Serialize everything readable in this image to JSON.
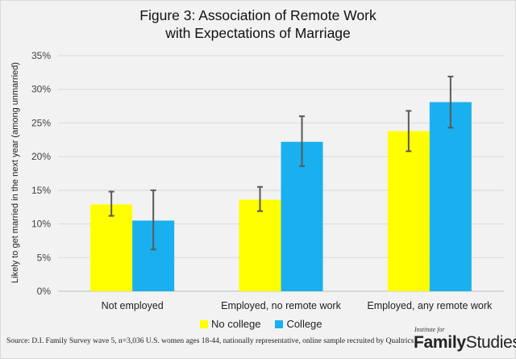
{
  "title_line1": "Figure 3: Association of Remote Work",
  "title_line2": "with Expectations of Marriage",
  "source": "Source: D.I. Family Survey wave 5, n=3,036 U.S. women ages 18-44, nationally representative, online sample recruited by Qualtrics",
  "logo": {
    "top_text": "Institute for",
    "name_bold": "Family",
    "name_rest": "Studies"
  },
  "colors": {
    "no_college": "#ffff00",
    "college": "#1ab0ef",
    "error_bar": "#595959",
    "grid": "#d9d9d9",
    "background": "#f2f2f2"
  },
  "chart_data": {
    "type": "bar",
    "title": "Figure 3: Association of Remote Work with Expectations of Marriage",
    "ylabel": "Likely to get married in the next year (among unmarried)",
    "xlabel": "",
    "ylim": [
      0,
      35
    ],
    "yticks": [
      0,
      5,
      10,
      15,
      20,
      25,
      30,
      35
    ],
    "ytick_labels": [
      "0%",
      "5%",
      "10%",
      "15%",
      "20%",
      "25%",
      "30%",
      "35%"
    ],
    "categories": [
      "Not employed",
      "Employed, no remote work",
      "Employed, any remote work"
    ],
    "series": [
      {
        "name": "No college",
        "values": [
          12.9,
          13.6,
          23.8
        ],
        "err_low": [
          11.2,
          11.9,
          20.8
        ],
        "err_high": [
          14.8,
          15.5,
          26.8
        ]
      },
      {
        "name": "College",
        "values": [
          10.5,
          22.2,
          28.1
        ],
        "err_low": [
          6.2,
          18.6,
          24.3
        ],
        "err_high": [
          15.0,
          26.0,
          31.9
        ]
      }
    ],
    "grid": true,
    "legend_position": "bottom"
  }
}
